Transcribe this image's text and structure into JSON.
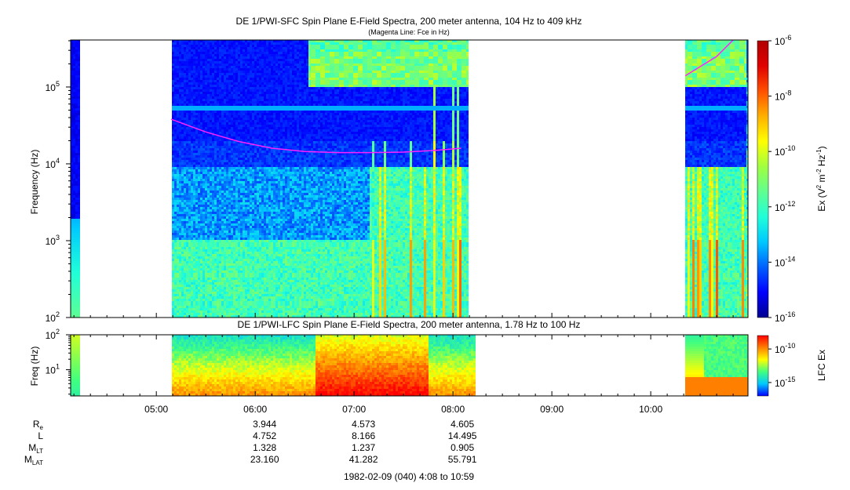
{
  "chart_data": [
    {
      "type": "heatmap",
      "title": "DE 1/PWI-SFC  Spin Plane E-Field Spectra, 200 meter antenna, 104 Hz to 409 kHz",
      "subtitle": "(Magenta Line: Fce in Hz)",
      "ylabel": "Frequency (Hz)",
      "yscale": "log",
      "ylim": [
        100,
        409000
      ],
      "yticks": [
        {
          "value": 100,
          "base": "10",
          "exp": "2"
        },
        {
          "value": 1000,
          "base": "10",
          "exp": "3"
        },
        {
          "value": 10000,
          "base": "10",
          "exp": "4"
        },
        {
          "value": 100000,
          "base": "10",
          "exp": "5"
        }
      ],
      "xlim": [
        "04:08",
        "10:59"
      ],
      "data_intervals": [
        [
          "04:08",
          "04:13"
        ],
        [
          "05:09",
          "08:09"
        ],
        [
          "10:21",
          "10:59"
        ]
      ],
      "band_gap_hz": [
        1000,
        1050
      ],
      "fce_line": {
        "color": "#ff22ff",
        "label": "Fce in Hz",
        "points": [
          {
            "t": "05:09",
            "f": 38000
          },
          {
            "t": "05:30",
            "f": 26000
          },
          {
            "t": "05:50",
            "f": 19500
          },
          {
            "t": "06:10",
            "f": 16000
          },
          {
            "t": "06:30",
            "f": 14500
          },
          {
            "t": "06:50",
            "f": 14000
          },
          {
            "t": "07:10",
            "f": 14000
          },
          {
            "t": "07:30",
            "f": 14200
          },
          {
            "t": "07:50",
            "f": 15000
          },
          {
            "t": "08:05",
            "f": 16000
          },
          {
            "t": "10:21",
            "f": 140000
          },
          {
            "t": "10:40",
            "f": 250000
          },
          {
            "t": "10:50",
            "f": 409000
          }
        ]
      },
      "colorbar": {
        "label_parts": {
          "pre": "Ex (V",
          "sup1": "2",
          "mid": " m",
          "sup2": "-2",
          "mid2": " Hz",
          "sup3": "-1",
          "post": ")"
        },
        "scale": "log",
        "range": [
          1e-16,
          1e-06
        ],
        "ticks": [
          {
            "value": 1e-06,
            "base": "10",
            "exp": "-6"
          },
          {
            "value": 1e-08,
            "base": "10",
            "exp": "-8"
          },
          {
            "value": 1e-10,
            "base": "10",
            "exp": "-10"
          },
          {
            "value": 1e-12,
            "base": "10",
            "exp": "-12"
          },
          {
            "value": 1e-14,
            "base": "10",
            "exp": "-14"
          },
          {
            "value": 1e-16,
            "base": "10",
            "exp": "-16"
          }
        ],
        "colormap": [
          "#00008f",
          "#0000ff",
          "#0060ff",
          "#00c8ff",
          "#20ffd8",
          "#60ff90",
          "#a0ff40",
          "#ffff00",
          "#ffb000",
          "#ff5000",
          "#e00000",
          "#b00000"
        ]
      }
    },
    {
      "type": "heatmap",
      "title": "DE 1/PWI-LFC  Spin Plane E-Field Spectra, 200 meter antenna, 1.78 Hz to 100 Hz",
      "ylabel": "Freq (Hz)",
      "yscale": "log",
      "ylim": [
        1.78,
        100
      ],
      "yticks": [
        {
          "value": 10,
          "base": "10",
          "exp": "1"
        },
        {
          "value": 100,
          "base": "10",
          "exp": "2"
        }
      ],
      "xlim": [
        "04:08",
        "10:59"
      ],
      "data_intervals": [
        [
          "04:08",
          "04:13"
        ],
        [
          "05:09",
          "08:13"
        ],
        [
          "10:21",
          "10:59"
        ]
      ],
      "colorbar": {
        "label": "LFC Ex",
        "scale": "log",
        "ticks": [
          {
            "value": 1e-10,
            "base": "10",
            "exp": "-10"
          },
          {
            "value": 1e-15,
            "base": "10",
            "exp": "-15"
          }
        ],
        "colormap": [
          "#0000ff",
          "#00c8ff",
          "#40ff80",
          "#ffff00",
          "#ff8000",
          "#ff0000"
        ]
      }
    }
  ],
  "time_axis": {
    "ticks": [
      "05:00",
      "06:00",
      "07:00",
      "08:00",
      "09:00",
      "10:00"
    ],
    "range_label": "1982-02-09 (040) 4:08 to 10:59"
  },
  "orbit_table": {
    "rows": [
      {
        "base": "R",
        "sub": "e",
        "values": [
          "3.944",
          "4.573",
          "4.605"
        ]
      },
      {
        "base": "L",
        "sub": "",
        "values": [
          "4.752",
          "8.166",
          "14.495"
        ]
      },
      {
        "base": "M",
        "sub": "LT",
        "values": [
          "1.328",
          "1.237",
          "0.905"
        ]
      },
      {
        "base": "M",
        "sub": "LAT",
        "values": [
          "23.160",
          "41.282",
          "55.791"
        ]
      }
    ]
  }
}
